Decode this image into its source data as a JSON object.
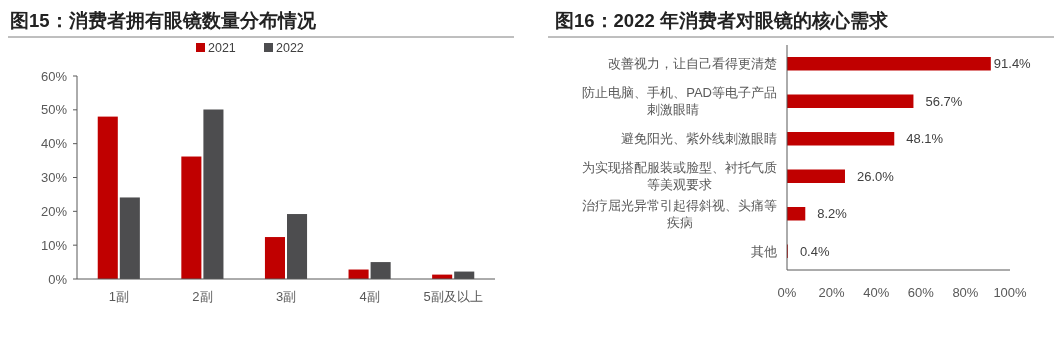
{
  "chart_data": [
    {
      "type": "bar",
      "title": "图15：消费者拥有眼镜数量分布情况",
      "categories": [
        "1副",
        "2副",
        "3副",
        "4副",
        "5副及以上"
      ],
      "series": [
        {
          "name": "2021",
          "color": "#c00000",
          "values": [
            48.0,
            36.2,
            12.4,
            2.8,
            1.3
          ]
        },
        {
          "name": "2022",
          "color": "#4d4d4f",
          "values": [
            24.1,
            50.1,
            19.2,
            5.0,
            2.2
          ]
        }
      ],
      "ylim": [
        0,
        60
      ],
      "yticks": [
        {
          "value": 0,
          "label": "0%"
        },
        {
          "value": 10,
          "label": "10%"
        },
        {
          "value": 20,
          "label": "20%"
        },
        {
          "value": 30,
          "label": "30%"
        },
        {
          "value": 40,
          "label": "40%"
        },
        {
          "value": 50,
          "label": "50%"
        },
        {
          "value": 60,
          "label": "60%"
        }
      ],
      "legend": "top"
    },
    {
      "type": "bar",
      "title": "图16：2022 年消费者对眼镜的核心需求",
      "orientation": "horizontal",
      "categories": [
        "改善视力，让自己看得更清楚",
        "防止电脑、手机、PAD等电子产品刺激眼睛",
        "避免阳光、紫外线刺激眼睛",
        "为实现搭配服装或脸型、衬托气质等美观要求",
        "治疗屈光异常引起得斜视、头痛等疾病",
        "其他"
      ],
      "values": [
        91.4,
        56.7,
        48.1,
        26.0,
        8.2,
        0.4
      ],
      "value_labels": [
        "91.4%",
        "56.7%",
        "48.1%",
        "26.0%",
        "8.2%",
        "0.4%"
      ],
      "color": "#c00000",
      "xlim": [
        0,
        100
      ],
      "xticks": [
        {
          "value": 0,
          "label": "0%"
        },
        {
          "value": 20,
          "label": "20%"
        },
        {
          "value": 40,
          "label": "40%"
        },
        {
          "value": 60,
          "label": "60%"
        },
        {
          "value": 80,
          "label": "80%"
        },
        {
          "value": 100,
          "label": "100%"
        }
      ]
    }
  ]
}
